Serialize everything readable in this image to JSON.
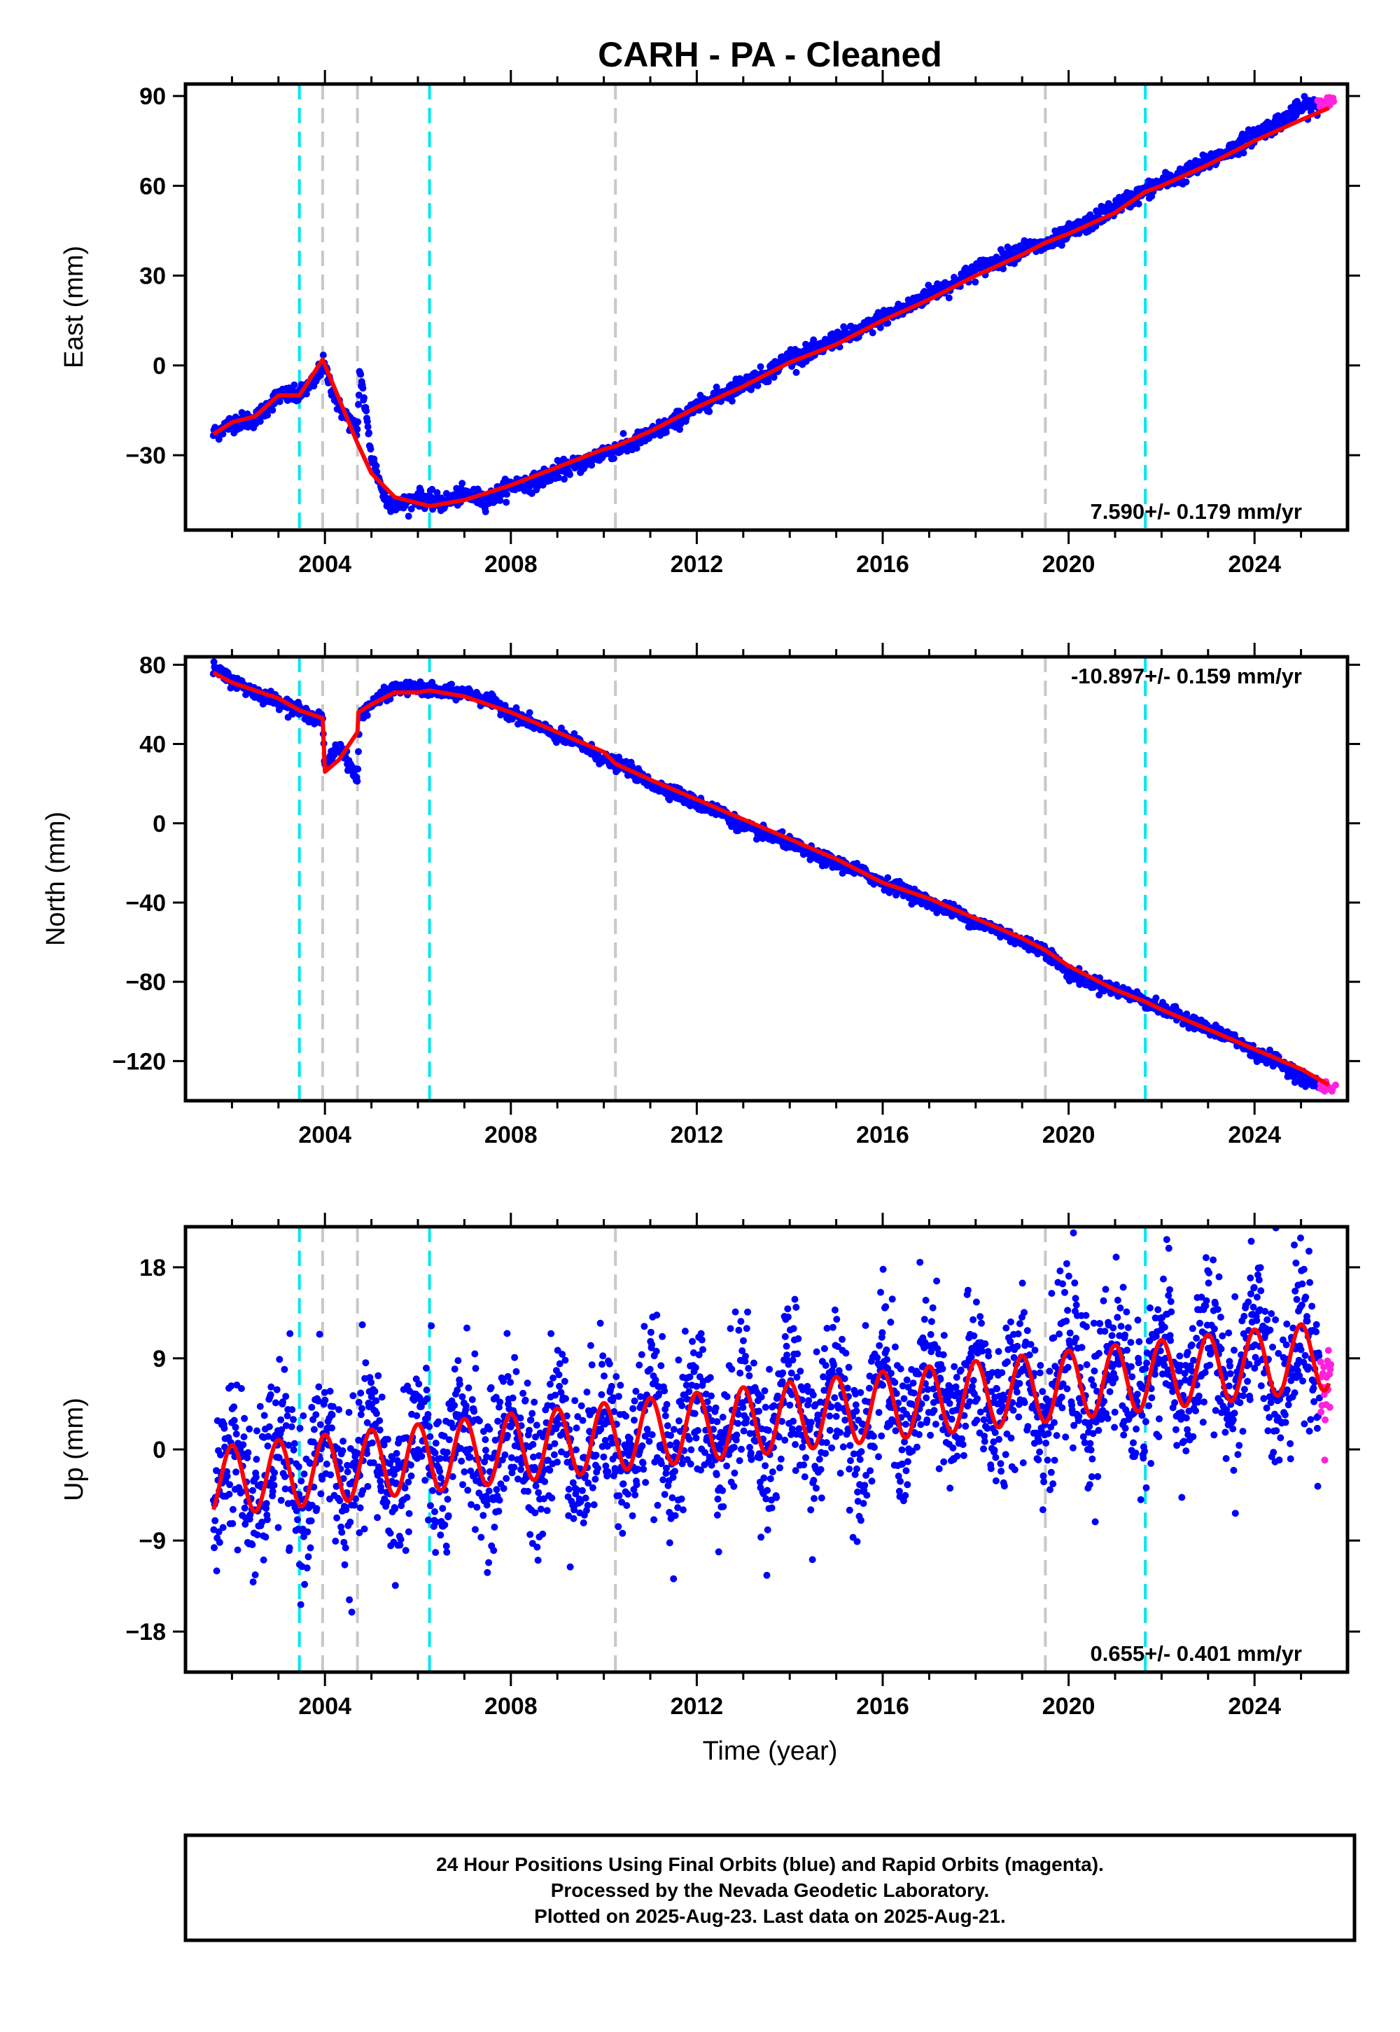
{
  "title": "CARH  - PA - Cleaned",
  "x_axis_label": "Time (year)",
  "x_ticks": [
    "2004",
    "2008",
    "2012",
    "2016",
    "2020",
    "2024"
  ],
  "colors": {
    "final_orbits": "#0000ff",
    "rapid_orbits": "#ff22dd",
    "model": "#ff0000",
    "steps_equipment": "#c8c8c8",
    "steps_earthquake": "#00e5ee",
    "frame": "#000000"
  },
  "footer": {
    "line1": "24 Hour Positions Using Final Orbits (blue) and Rapid Orbits (magenta).",
    "line2": "Processed by the Nevada Geodetic Laboratory.",
    "line3": "Plotted on 2025-Aug-23. Last data on 2025-Aug-21."
  },
  "chart_data": [
    {
      "type": "scatter",
      "panel": "east",
      "ylabel": "East (mm)",
      "ylim": [
        -55,
        94
      ],
      "xlim": [
        2001.0,
        2026.0
      ],
      "yticks": [
        -30,
        0,
        30,
        60,
        90
      ],
      "ytick_labels": [
        "−30",
        "0",
        "30",
        "60",
        "90"
      ],
      "rate_label": "7.590+/- 0.179 mm/yr",
      "rate_position": "bottom-right",
      "step_lines_cyan": [
        2003.45,
        2006.25,
        2021.65
      ],
      "step_lines_gray": [
        2003.95,
        2004.7,
        2010.25,
        2019.5
      ],
      "series_points": [
        {
          "name": "final",
          "x": [
            2001.6,
            2002.0,
            2002.5,
            2003.0,
            2003.45,
            2003.8,
            2003.95,
            2004.3,
            2004.7,
            2004.75,
            2005.0,
            2005.3,
            2005.6,
            2006.0,
            2006.5,
            2007.0,
            2007.5,
            2008.0,
            2008.5,
            2009.0,
            2009.5,
            2010.0,
            2010.5,
            2011.0,
            2011.5,
            2012.0,
            2012.5,
            2013.0,
            2013.5,
            2014.0,
            2014.5,
            2015.0,
            2015.5,
            2016.0,
            2016.5,
            2017.0,
            2017.5,
            2018.0,
            2018.5,
            2019.0,
            2019.5,
            2020.0,
            2020.5,
            2021.0,
            2021.5,
            2022.0,
            2022.5,
            2023.0,
            2023.5,
            2024.0,
            2024.5,
            2025.0,
            2025.4
          ],
          "y": [
            -23,
            -19,
            -18,
            -10,
            -10,
            -5,
            1,
            -14,
            -22,
            -1,
            -30,
            -45,
            -47,
            -44,
            -46,
            -43,
            -45,
            -40,
            -39,
            -35,
            -33,
            -29,
            -27,
            -23,
            -19,
            -14,
            -10,
            -6,
            -3,
            3,
            4,
            9,
            11,
            16,
            19,
            24,
            27,
            32,
            35,
            39,
            40,
            44,
            48,
            53,
            57,
            61,
            64,
            68,
            72,
            77,
            81,
            86,
            87
          ]
        },
        {
          "name": "rapid",
          "x": [
            2025.45,
            2025.55,
            2025.62
          ],
          "y": [
            88,
            87,
            89
          ]
        }
      ],
      "model": {
        "x": [
          2001.6,
          2002.0,
          2002.5,
          2003.0,
          2003.45,
          2003.95,
          2004.7,
          2005.0,
          2005.5,
          2006.0,
          2006.25,
          2007.0,
          2008.0,
          2009.0,
          2010.0,
          2010.25,
          2011.0,
          2012.0,
          2013.0,
          2014.0,
          2015.0,
          2016.0,
          2017.0,
          2018.0,
          2019.0,
          2019.5,
          2020.0,
          2021.0,
          2021.65,
          2022.0,
          2023.0,
          2024.0,
          2025.0,
          2025.6
        ],
        "y": [
          -23,
          -19,
          -17,
          -10,
          -10,
          2,
          -26,
          -36,
          -44,
          -46,
          -47,
          -45,
          -40,
          -34,
          -28,
          -27,
          -22,
          -14,
          -7,
          1,
          7,
          15,
          22,
          30,
          37,
          41,
          44,
          51,
          58,
          60,
          67,
          75,
          82,
          86
        ]
      }
    },
    {
      "type": "scatter",
      "panel": "north",
      "ylabel": "North (mm)",
      "ylim": [
        -140,
        84
      ],
      "xlim": [
        2001.0,
        2026.0
      ],
      "yticks": [
        -120,
        -80,
        -40,
        0,
        40,
        80
      ],
      "ytick_labels": [
        "−120",
        "−80",
        "−40",
        "0",
        "40",
        "80"
      ],
      "rate_label": "-10.897+/- 0.159 mm/yr",
      "rate_position": "top-right",
      "step_lines_cyan": [
        2003.45,
        2006.25,
        2021.65
      ],
      "step_lines_gray": [
        2003.95,
        2004.7,
        2010.25,
        2019.5
      ],
      "series_points": [
        {
          "name": "final",
          "x": [
            2001.6,
            2002.0,
            2002.5,
            2003.0,
            2003.5,
            2003.95,
            2004.0,
            2004.3,
            2004.7,
            2004.75,
            2005.0,
            2005.5,
            2006.0,
            2006.5,
            2007.0,
            2007.5,
            2008.0,
            2008.5,
            2009.0,
            2009.5,
            2010.0,
            2010.5,
            2011.0,
            2011.5,
            2012.0,
            2012.5,
            2013.0,
            2013.5,
            2014.0,
            2014.5,
            2015.0,
            2015.5,
            2016.0,
            2016.5,
            2017.0,
            2017.5,
            2018.0,
            2018.5,
            2019.0,
            2019.5,
            2020.0,
            2020.5,
            2021.0,
            2021.5,
            2022.0,
            2022.5,
            2023.0,
            2023.5,
            2024.0,
            2024.5,
            2025.0,
            2025.4
          ],
          "y": [
            78,
            72,
            66,
            62,
            56,
            52,
            28,
            40,
            22,
            55,
            60,
            68,
            68,
            66,
            66,
            62,
            56,
            50,
            44,
            40,
            32,
            28,
            20,
            16,
            10,
            6,
            -2,
            -6,
            -10,
            -16,
            -20,
            -24,
            -30,
            -34,
            -40,
            -44,
            -50,
            -54,
            -60,
            -64,
            -76,
            -80,
            -84,
            -88,
            -94,
            -98,
            -104,
            -108,
            -116,
            -120,
            -128,
            -132
          ]
        },
        {
          "name": "rapid",
          "x": [
            2025.45,
            2025.55,
            2025.62
          ],
          "y": [
            -133,
            -132,
            -134
          ]
        }
      ],
      "model": {
        "x": [
          2001.6,
          2002.0,
          2003.0,
          2003.45,
          2003.95,
          2004.0,
          2004.3,
          2004.7,
          2004.72,
          2005.0,
          2005.5,
          2006.0,
          2006.25,
          2007.0,
          2008.0,
          2009.0,
          2010.0,
          2010.25,
          2011.0,
          2012.0,
          2013.0,
          2014.0,
          2015.0,
          2016.0,
          2017.0,
          2018.0,
          2019.0,
          2019.5,
          2020.0,
          2021.0,
          2021.65,
          2022.0,
          2023.0,
          2024.0,
          2025.0,
          2025.6
        ],
        "y": [
          76,
          71,
          63,
          57,
          53,
          26,
          32,
          46,
          56,
          60,
          66,
          66,
          67,
          64,
          56,
          46,
          36,
          30,
          22,
          12,
          2,
          -8,
          -18,
          -30,
          -38,
          -48,
          -58,
          -64,
          -72,
          -84,
          -90,
          -94,
          -104,
          -114,
          -124,
          -132
        ]
      }
    },
    {
      "type": "scatter",
      "panel": "up",
      "ylabel": "Up (mm)",
      "ylim": [
        -22,
        22
      ],
      "xlim": [
        2001.0,
        2026.0
      ],
      "yticks": [
        -18,
        -9,
        0,
        9,
        18
      ],
      "ytick_labels": [
        "−18",
        "−9",
        "0",
        "9",
        "18"
      ],
      "rate_label": "0.655+/- 0.401 mm/yr",
      "rate_position": "bottom-right",
      "step_lines_cyan": [
        2003.45,
        2006.25,
        2021.65
      ],
      "step_lines_gray": [
        2003.95,
        2004.7,
        2010.25,
        2019.5
      ],
      "seasonal_model": {
        "start": 2001.6,
        "end": 2025.6,
        "base_at_start": -3.2,
        "trend_per_year": 0.52,
        "amplitude": 3.4,
        "period_years": 1.0,
        "phase_year": 2002.75
      },
      "scatter_spread_mm": 5.5,
      "rapid_x_range": [
        2025.42,
        2025.64
      ]
    }
  ]
}
